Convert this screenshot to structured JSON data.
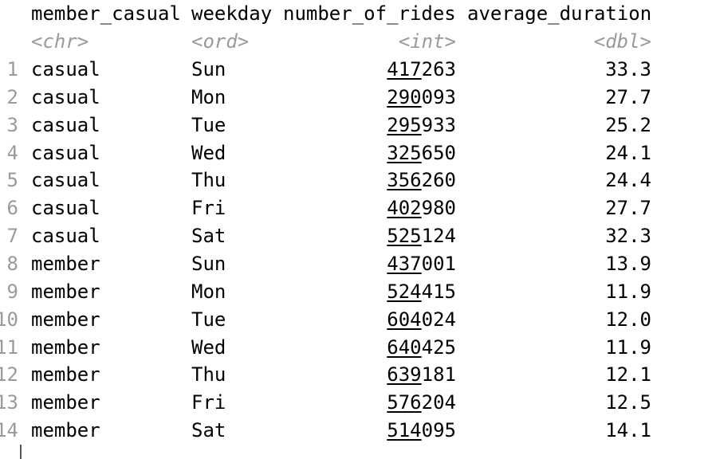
{
  "console": {
    "columns": [
      {
        "name": "member_casual",
        "type": "<chr>"
      },
      {
        "name": "weekday",
        "type": "<ord>"
      },
      {
        "name": "number_of_rides",
        "type": "<int>"
      },
      {
        "name": "average_duration",
        "type": "<dbl>"
      }
    ],
    "rows": [
      {
        "index": "1",
        "member_casual": "casual",
        "weekday": "Sun",
        "rides_lead": "417",
        "rides_tail": "263",
        "average_duration": "33.3"
      },
      {
        "index": "2",
        "member_casual": "casual",
        "weekday": "Mon",
        "rides_lead": "290",
        "rides_tail": "093",
        "average_duration": "27.7"
      },
      {
        "index": "3",
        "member_casual": "casual",
        "weekday": "Tue",
        "rides_lead": "295",
        "rides_tail": "933",
        "average_duration": "25.2"
      },
      {
        "index": "4",
        "member_casual": "casual",
        "weekday": "Wed",
        "rides_lead": "325",
        "rides_tail": "650",
        "average_duration": "24.1"
      },
      {
        "index": "5",
        "member_casual": "casual",
        "weekday": "Thu",
        "rides_lead": "356",
        "rides_tail": "260",
        "average_duration": "24.4"
      },
      {
        "index": "6",
        "member_casual": "casual",
        "weekday": "Fri",
        "rides_lead": "402",
        "rides_tail": "980",
        "average_duration": "27.7"
      },
      {
        "index": "7",
        "member_casual": "casual",
        "weekday": "Sat",
        "rides_lead": "525",
        "rides_tail": "124",
        "average_duration": "32.3"
      },
      {
        "index": "8",
        "member_casual": "member",
        "weekday": "Sun",
        "rides_lead": "437",
        "rides_tail": "001",
        "average_duration": "13.9"
      },
      {
        "index": "9",
        "member_casual": "member",
        "weekday": "Mon",
        "rides_lead": "524",
        "rides_tail": "415",
        "average_duration": "11.9"
      },
      {
        "index": "10",
        "member_casual": "member",
        "weekday": "Tue",
        "rides_lead": "604",
        "rides_tail": "024",
        "average_duration": "12.0"
      },
      {
        "index": "11",
        "member_casual": "member",
        "weekday": "Wed",
        "rides_lead": "640",
        "rides_tail": "425",
        "average_duration": "11.9"
      },
      {
        "index": "12",
        "member_casual": "member",
        "weekday": "Thu",
        "rides_lead": "639",
        "rides_tail": "181",
        "average_duration": "12.1"
      },
      {
        "index": "13",
        "member_casual": "member",
        "weekday": "Fri",
        "rides_lead": "576",
        "rides_tail": "204",
        "average_duration": "12.5"
      },
      {
        "index": "14",
        "member_casual": "member",
        "weekday": "Sat",
        "rides_lead": "514",
        "rides_tail": "095",
        "average_duration": "14.1"
      }
    ]
  }
}
